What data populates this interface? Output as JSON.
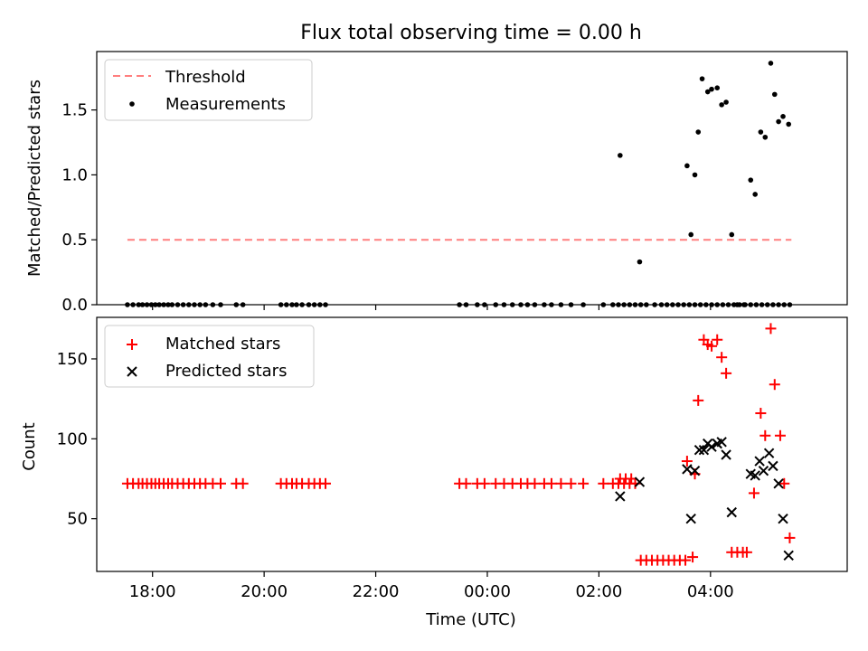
{
  "title": "Flux total observing time = 0.00 h",
  "colors": {
    "threshold": "#ff7f7f",
    "measurement": "#000000",
    "matched": "#ff0000",
    "predicted": "#000000"
  },
  "chart_data": [
    {
      "type": "scatter",
      "name": "ratio-panel",
      "ylabel": "Matched/Predicted stars",
      "ylim": [
        0,
        1.95
      ],
      "xlim": [
        17.0,
        30.45
      ],
      "yticks": [
        0.0,
        0.5,
        1.0,
        1.5
      ],
      "ytick_labels": [
        "0.0",
        "0.5",
        "1.0",
        "1.5"
      ],
      "legend": {
        "position": "top-left",
        "entries": [
          "Threshold",
          "Measurements"
        ]
      },
      "threshold": {
        "name": "Threshold",
        "y": 0.5,
        "x": [
          17.55,
          29.45
        ]
      },
      "series": [
        {
          "name": "Measurements",
          "marker": "dot",
          "points": [
            [
              17.55,
              0
            ],
            [
              17.65,
              0
            ],
            [
              17.75,
              0
            ],
            [
              17.82,
              0
            ],
            [
              17.9,
              0
            ],
            [
              17.98,
              0
            ],
            [
              18.05,
              0
            ],
            [
              18.12,
              0
            ],
            [
              18.2,
              0
            ],
            [
              18.28,
              0
            ],
            [
              18.35,
              0
            ],
            [
              18.45,
              0
            ],
            [
              18.55,
              0
            ],
            [
              18.65,
              0
            ],
            [
              18.75,
              0
            ],
            [
              18.85,
              0
            ],
            [
              18.95,
              0
            ],
            [
              19.08,
              0
            ],
            [
              19.22,
              0
            ],
            [
              19.5,
              0
            ],
            [
              19.62,
              0
            ],
            [
              20.3,
              0
            ],
            [
              20.4,
              0
            ],
            [
              20.5,
              0
            ],
            [
              20.58,
              0
            ],
            [
              20.68,
              0
            ],
            [
              20.8,
              0
            ],
            [
              20.9,
              0
            ],
            [
              21.0,
              0
            ],
            [
              21.1,
              0
            ],
            [
              23.5,
              0
            ],
            [
              23.62,
              0
            ],
            [
              23.82,
              0
            ],
            [
              23.95,
              0
            ],
            [
              24.15,
              0
            ],
            [
              24.3,
              0
            ],
            [
              24.45,
              0
            ],
            [
              24.6,
              0
            ],
            [
              24.72,
              0
            ],
            [
              24.85,
              0
            ],
            [
              25.02,
              0
            ],
            [
              25.15,
              0
            ],
            [
              25.32,
              0
            ],
            [
              25.5,
              0
            ],
            [
              25.72,
              0
            ],
            [
              26.08,
              0
            ],
            [
              26.25,
              0
            ],
            [
              26.35,
              0
            ],
            [
              26.45,
              0
            ],
            [
              26.55,
              0
            ],
            [
              26.65,
              0
            ],
            [
              26.75,
              0
            ],
            [
              26.85,
              0
            ],
            [
              27.0,
              0
            ],
            [
              27.12,
              0
            ],
            [
              27.22,
              0
            ],
            [
              27.32,
              0
            ],
            [
              27.42,
              0
            ],
            [
              27.52,
              0
            ],
            [
              27.62,
              0
            ],
            [
              27.72,
              0
            ],
            [
              27.82,
              0
            ],
            [
              27.92,
              0
            ],
            [
              28.02,
              0
            ],
            [
              28.12,
              0
            ],
            [
              28.22,
              0
            ],
            [
              28.32,
              0
            ],
            [
              28.42,
              0
            ],
            [
              28.52,
              0
            ],
            [
              28.62,
              0
            ],
            [
              28.72,
              0
            ],
            [
              28.82,
              0
            ],
            [
              28.92,
              0
            ],
            [
              29.02,
              0
            ],
            [
              29.12,
              0
            ],
            [
              29.22,
              0
            ],
            [
              29.32,
              0
            ],
            [
              29.42,
              0
            ],
            [
              26.38,
              1.15
            ],
            [
              26.73,
              0.33
            ],
            [
              27.58,
              1.07
            ],
            [
              27.65,
              0.54
            ],
            [
              27.72,
              1.0
            ],
            [
              27.78,
              1.33
            ],
            [
              27.85,
              1.74
            ],
            [
              27.95,
              1.64
            ],
            [
              28.02,
              1.66
            ],
            [
              28.12,
              1.67
            ],
            [
              28.2,
              1.54
            ],
            [
              28.28,
              1.56
            ],
            [
              28.38,
              0.54
            ],
            [
              28.48,
              0
            ],
            [
              28.6,
              0
            ],
            [
              28.72,
              0.96
            ],
            [
              28.8,
              0.85
            ],
            [
              28.9,
              1.33
            ],
            [
              28.98,
              1.29
            ],
            [
              29.08,
              1.86
            ],
            [
              29.15,
              1.62
            ],
            [
              29.22,
              1.41
            ],
            [
              29.3,
              1.45
            ],
            [
              29.4,
              1.39
            ]
          ]
        }
      ]
    },
    {
      "type": "scatter",
      "name": "count-panel",
      "ylabel": "Count",
      "xlabel": "Time (UTC)",
      "ylim": [
        17,
        176
      ],
      "xlim": [
        17.0,
        30.45
      ],
      "yticks": [
        50,
        100,
        150
      ],
      "ytick_labels": [
        "50",
        "100",
        "150"
      ],
      "xticks": [
        18,
        20,
        22,
        24,
        26,
        28
      ],
      "xtick_labels": [
        "18:00",
        "20:00",
        "22:00",
        "00:00",
        "02:00",
        "04:00"
      ],
      "legend": {
        "position": "top-left",
        "entries": [
          "Matched stars",
          "Predicted stars"
        ]
      },
      "series": [
        {
          "name": "Matched stars",
          "marker": "plus",
          "points": [
            [
              17.55,
              72
            ],
            [
              17.65,
              72
            ],
            [
              17.75,
              72
            ],
            [
              17.82,
              72
            ],
            [
              17.9,
              72
            ],
            [
              17.98,
              72
            ],
            [
              18.05,
              72
            ],
            [
              18.12,
              72
            ],
            [
              18.2,
              72
            ],
            [
              18.28,
              72
            ],
            [
              18.35,
              72
            ],
            [
              18.45,
              72
            ],
            [
              18.55,
              72
            ],
            [
              18.65,
              72
            ],
            [
              18.75,
              72
            ],
            [
              18.85,
              72
            ],
            [
              18.95,
              72
            ],
            [
              19.08,
              72
            ],
            [
              19.22,
              72
            ],
            [
              19.5,
              72
            ],
            [
              19.62,
              72
            ],
            [
              20.3,
              72
            ],
            [
              20.4,
              72
            ],
            [
              20.5,
              72
            ],
            [
              20.58,
              72
            ],
            [
              20.68,
              72
            ],
            [
              20.8,
              72
            ],
            [
              20.9,
              72
            ],
            [
              21.0,
              72
            ],
            [
              21.1,
              72
            ],
            [
              23.5,
              72
            ],
            [
              23.62,
              72
            ],
            [
              23.82,
              72
            ],
            [
              23.95,
              72
            ],
            [
              24.15,
              72
            ],
            [
              24.3,
              72
            ],
            [
              24.45,
              72
            ],
            [
              24.6,
              72
            ],
            [
              24.72,
              72
            ],
            [
              24.85,
              72
            ],
            [
              25.02,
              72
            ],
            [
              25.15,
              72
            ],
            [
              25.32,
              72
            ],
            [
              25.5,
              72
            ],
            [
              25.72,
              72
            ],
            [
              26.08,
              72
            ],
            [
              26.25,
              72
            ],
            [
              26.35,
              72
            ],
            [
              26.45,
              72
            ],
            [
              26.55,
              72
            ],
            [
              26.65,
              72
            ],
            [
              26.38,
              75
            ],
            [
              26.48,
              75
            ],
            [
              26.58,
              75
            ],
            [
              26.75,
              24
            ],
            [
              26.85,
              24
            ],
            [
              26.95,
              24
            ],
            [
              27.05,
              24
            ],
            [
              27.15,
              24
            ],
            [
              27.25,
              24
            ],
            [
              27.35,
              24
            ],
            [
              27.45,
              24
            ],
            [
              27.55,
              24
            ],
            [
              27.68,
              26
            ],
            [
              27.58,
              86
            ],
            [
              27.72,
              78
            ],
            [
              27.78,
              124
            ],
            [
              27.88,
              162
            ],
            [
              27.95,
              159
            ],
            [
              28.02,
              158
            ],
            [
              28.12,
              162
            ],
            [
              28.2,
              151
            ],
            [
              28.28,
              141
            ],
            [
              28.38,
              29
            ],
            [
              28.48,
              29
            ],
            [
              28.58,
              29
            ],
            [
              28.65,
              29
            ],
            [
              28.78,
              66
            ],
            [
              28.9,
              116
            ],
            [
              28.98,
              102
            ],
            [
              29.08,
              169
            ],
            [
              29.15,
              134
            ],
            [
              29.25,
              102
            ],
            [
              29.32,
              72
            ],
            [
              29.42,
              38
            ]
          ]
        },
        {
          "name": "Predicted stars",
          "marker": "x",
          "points": [
            [
              26.38,
              64
            ],
            [
              26.73,
              73
            ],
            [
              27.58,
              81
            ],
            [
              27.65,
              50
            ],
            [
              27.72,
              80
            ],
            [
              27.8,
              93
            ],
            [
              27.88,
              93
            ],
            [
              27.95,
              97
            ],
            [
              28.02,
              95
            ],
            [
              28.12,
              97
            ],
            [
              28.2,
              98
            ],
            [
              28.28,
              90
            ],
            [
              28.38,
              54
            ],
            [
              28.72,
              78
            ],
            [
              28.8,
              77
            ],
            [
              28.88,
              86
            ],
            [
              28.95,
              80
            ],
            [
              29.05,
              91
            ],
            [
              29.12,
              83
            ],
            [
              29.22,
              72
            ],
            [
              29.3,
              50
            ],
            [
              29.4,
              27
            ]
          ]
        }
      ]
    }
  ]
}
